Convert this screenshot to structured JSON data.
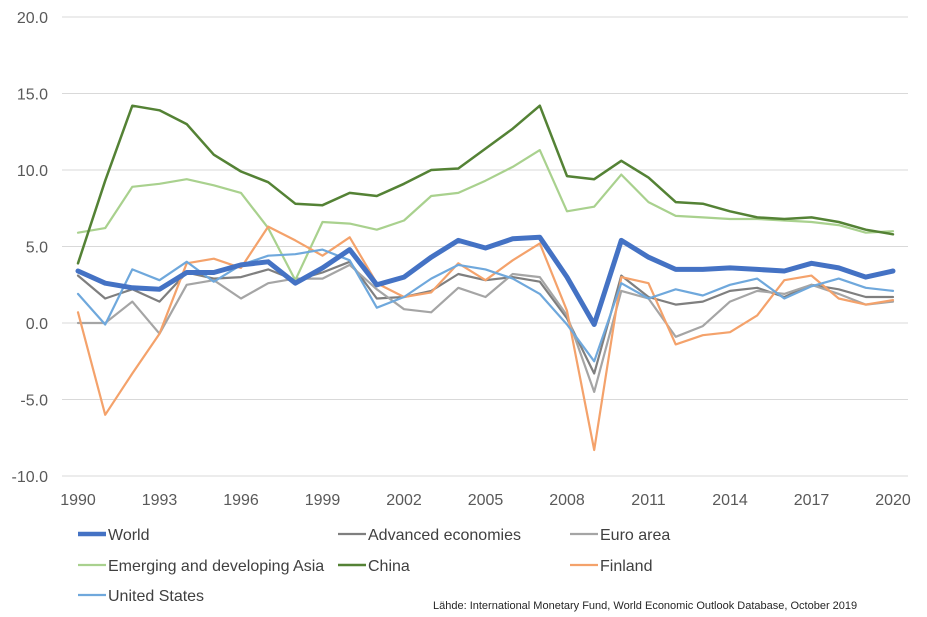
{
  "chart_data": {
    "type": "line",
    "title": "",
    "xlabel": "",
    "ylabel": "",
    "ylim": [
      -10,
      20
    ],
    "y_ticks": [
      -10,
      -5,
      0,
      5,
      10,
      15,
      20
    ],
    "y_tick_labels": [
      "-10.0",
      "-5.0",
      "0.0",
      "5.0",
      "10.0",
      "15.0",
      "20.0"
    ],
    "x": [
      1990,
      1991,
      1992,
      1993,
      1994,
      1995,
      1996,
      1997,
      1998,
      1999,
      2000,
      2001,
      2002,
      2003,
      2004,
      2005,
      2006,
      2007,
      2008,
      2009,
      2010,
      2011,
      2012,
      2013,
      2014,
      2015,
      2016,
      2017,
      2018,
      2019,
      2020
    ],
    "x_ticks": [
      1990,
      1993,
      1996,
      1999,
      2002,
      2005,
      2008,
      2011,
      2014,
      2017,
      2020
    ],
    "x_tick_labels": [
      "1990",
      "1993",
      "1996",
      "1999",
      "2002",
      "2005",
      "2008",
      "2011",
      "2014",
      "2017",
      "2020"
    ],
    "grid": "horizontal",
    "legend_position": "bottom",
    "series": [
      {
        "name": "Advanced economies",
        "color": "#7f7f7f",
        "width": 2.2,
        "values": [
          3.1,
          1.6,
          2.2,
          1.4,
          3.3,
          2.9,
          3.0,
          3.5,
          2.8,
          3.3,
          4.0,
          1.6,
          1.7,
          2.1,
          3.2,
          2.8,
          3.0,
          2.7,
          0.3,
          -3.3,
          3.1,
          1.7,
          1.2,
          1.4,
          2.1,
          2.3,
          1.7,
          2.5,
          2.2,
          1.7,
          1.7
        ]
      },
      {
        "name": "Euro area",
        "color": "#a5a5a5",
        "width": 2.2,
        "values": [
          0.0,
          0.0,
          1.4,
          -0.7,
          2.5,
          2.8,
          1.6,
          2.6,
          2.9,
          2.9,
          3.8,
          2.2,
          0.9,
          0.7,
          2.3,
          1.7,
          3.2,
          3.0,
          0.5,
          -4.5,
          2.1,
          1.6,
          -0.9,
          -0.2,
          1.4,
          2.1,
          1.9,
          2.5,
          1.9,
          1.2,
          1.4
        ]
      },
      {
        "name": "Emerging and developing Asia",
        "color": "#a9d18e",
        "width": 2.2,
        "values": [
          5.9,
          6.2,
          8.9,
          9.1,
          9.4,
          9.0,
          8.5,
          6.2,
          2.8,
          6.6,
          6.5,
          6.1,
          6.7,
          8.3,
          8.5,
          9.3,
          10.2,
          11.3,
          7.3,
          7.6,
          9.7,
          7.9,
          7.0,
          6.9,
          6.8,
          6.8,
          6.7,
          6.6,
          6.4,
          5.9,
          6.0
        ]
      },
      {
        "name": "China",
        "color": "#548235",
        "width": 2.5,
        "values": [
          3.9,
          9.3,
          14.2,
          13.9,
          13.0,
          11.0,
          9.9,
          9.2,
          7.8,
          7.7,
          8.5,
          8.3,
          9.1,
          10.0,
          10.1,
          11.4,
          12.7,
          14.2,
          9.6,
          9.4,
          10.6,
          9.5,
          7.9,
          7.8,
          7.3,
          6.9,
          6.8,
          6.9,
          6.6,
          6.1,
          5.8
        ]
      },
      {
        "name": "Finland",
        "color": "#f4a26b",
        "width": 2.2,
        "values": [
          0.7,
          -6.0,
          -3.3,
          -0.7,
          3.9,
          4.2,
          3.6,
          6.3,
          5.4,
          4.4,
          5.6,
          2.6,
          1.7,
          2.0,
          3.9,
          2.8,
          4.1,
          5.2,
          0.8,
          -8.3,
          3.0,
          2.6,
          -1.4,
          -0.8,
          -0.6,
          0.5,
          2.8,
          3.1,
          1.6,
          1.2,
          1.5
        ]
      },
      {
        "name": "United States",
        "color": "#6fa8dc",
        "width": 2.2,
        "values": [
          1.9,
          -0.1,
          3.5,
          2.8,
          4.0,
          2.7,
          3.8,
          4.4,
          4.5,
          4.8,
          4.1,
          1.0,
          1.7,
          2.9,
          3.8,
          3.5,
          2.9,
          1.9,
          -0.1,
          -2.5,
          2.6,
          1.6,
          2.2,
          1.8,
          2.5,
          2.9,
          1.6,
          2.4,
          2.9,
          2.3,
          2.1
        ]
      },
      {
        "name": "World",
        "color": "#4472c4",
        "width": 5,
        "values": [
          3.4,
          2.6,
          2.3,
          2.2,
          3.3,
          3.3,
          3.8,
          4.0,
          2.6,
          3.6,
          4.8,
          2.5,
          3.0,
          4.3,
          5.4,
          4.9,
          5.5,
          5.6,
          3.0,
          -0.1,
          5.4,
          4.3,
          3.5,
          3.5,
          3.6,
          3.5,
          3.4,
          3.9,
          3.6,
          3.0,
          3.4
        ]
      }
    ],
    "legend": [
      {
        "series": "World"
      },
      {
        "series": "Advanced economies"
      },
      {
        "series": "Euro area"
      },
      {
        "series": "Emerging and developing Asia"
      },
      {
        "series": "China"
      },
      {
        "series": "Finland"
      },
      {
        "series": "United States"
      }
    ],
    "annotation": "Lähde: International Monetary Fund, World Economic Outlook Database, October 2019"
  }
}
